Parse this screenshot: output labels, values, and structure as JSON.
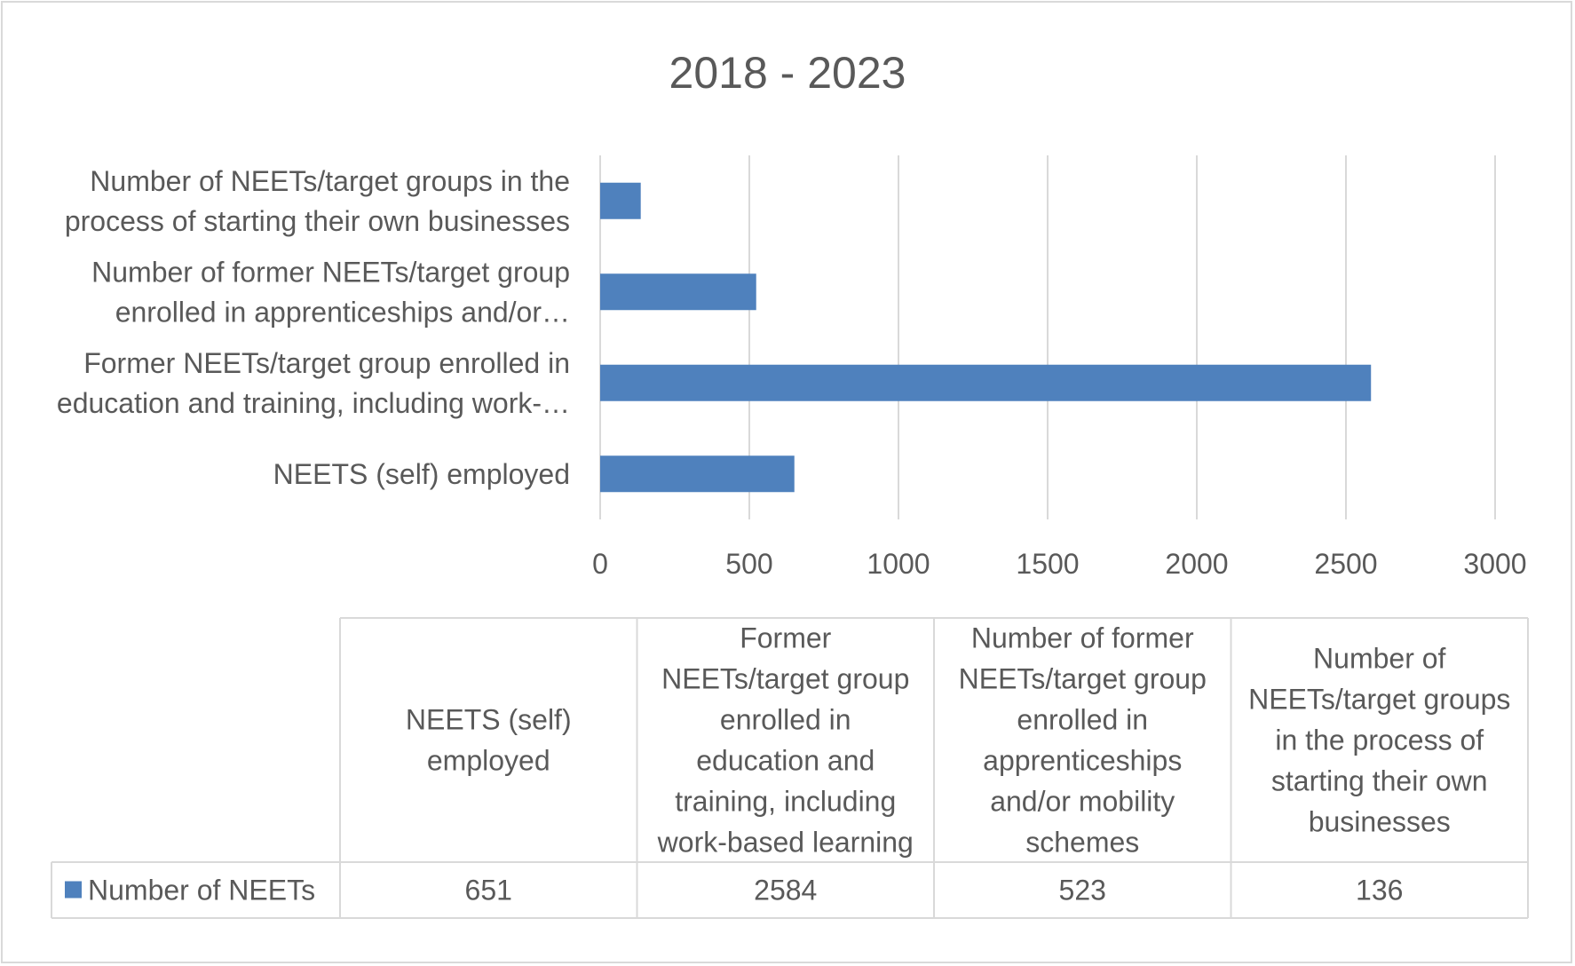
{
  "chart_data": {
    "type": "bar",
    "orientation": "horizontal",
    "title": "2018 - 2023",
    "categories": [
      "NEETS (self) employed",
      "Former NEETs/target group enrolled in education and training, including work-based learning",
      "Number of former NEETs/target group enrolled in apprenticeships and/or mobility schemes",
      "Number of NEETs/target groups in the process of starting their own businesses"
    ],
    "axis_category_labels": [
      [
        "NEETS (self) employed"
      ],
      [
        "Former NEETs/target group enrolled in",
        "education and training, including work-…"
      ],
      [
        "Number of former NEETs/target group",
        "enrolled in apprenticeships and/or…"
      ],
      [
        "Number of NEETs/target groups in the",
        "process of starting their own businesses"
      ]
    ],
    "table_header_labels": [
      [
        "NEETS (self)",
        "employed"
      ],
      [
        "Former",
        "NEETs/target group",
        "enrolled in",
        "education and",
        "training, including",
        "work-based learning"
      ],
      [
        "Number of former",
        "NEETs/target group",
        "enrolled in",
        "apprenticeships",
        "and/or mobility",
        "schemes"
      ],
      [
        "Number of",
        "NEETs/target groups",
        "in the process of",
        "starting their own",
        "businesses"
      ]
    ],
    "series": [
      {
        "name": "Number of NEETs",
        "values": [
          651,
          2584,
          523,
          136
        ],
        "color": "#4f81bd"
      }
    ],
    "xlim": [
      0,
      3000
    ],
    "xticks": [
      0,
      500,
      1000,
      1500,
      2000,
      2500,
      3000
    ],
    "grid": true,
    "legend": "data-table"
  }
}
